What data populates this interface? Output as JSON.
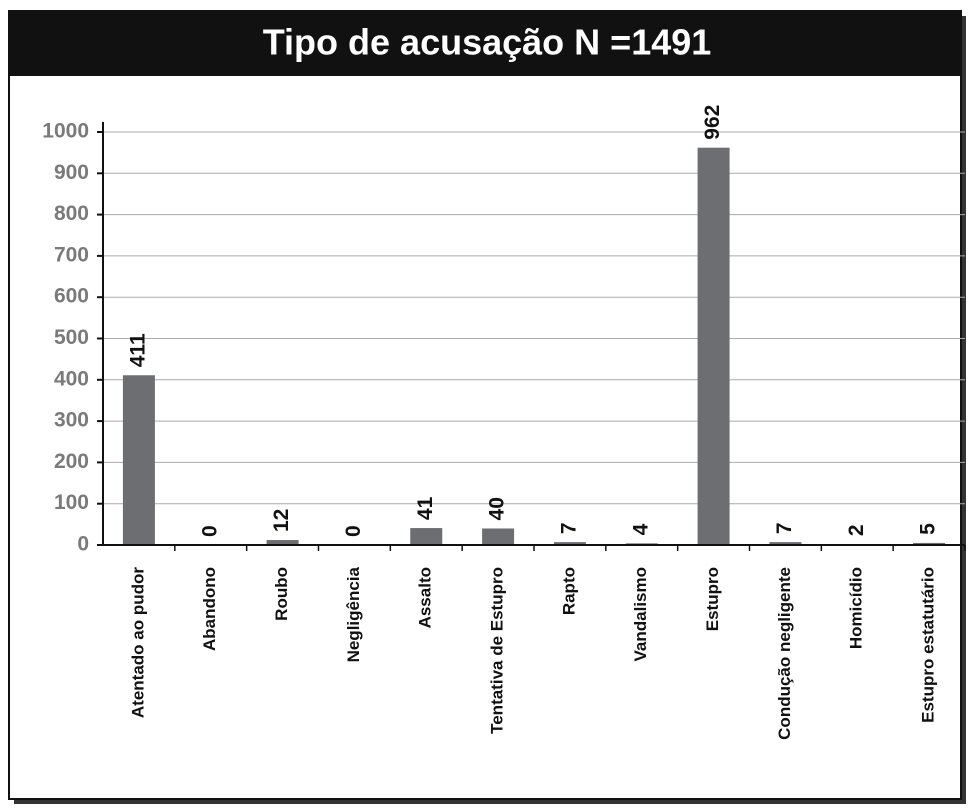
{
  "chart_data": {
    "type": "bar",
    "title": "Tipo de acusação N =1491",
    "categories": [
      "Atentado ao pudor",
      "Abandono",
      "Roubo",
      "Negligência",
      "Assalto",
      "Tentativa de Estupro",
      "Rapto",
      "Vandalismo",
      "Estupro",
      "Condução negligente",
      "Homicídio",
      "Estupro estatutário"
    ],
    "values": [
      411,
      0,
      12,
      0,
      41,
      40,
      7,
      4,
      962,
      7,
      2,
      5
    ],
    "color": "#6d6e71",
    "ylim": [
      0,
      1000
    ],
    "yticks": [
      0,
      100,
      200,
      300,
      400,
      500,
      600,
      700,
      800,
      900,
      1000
    ],
    "grid": true
  }
}
